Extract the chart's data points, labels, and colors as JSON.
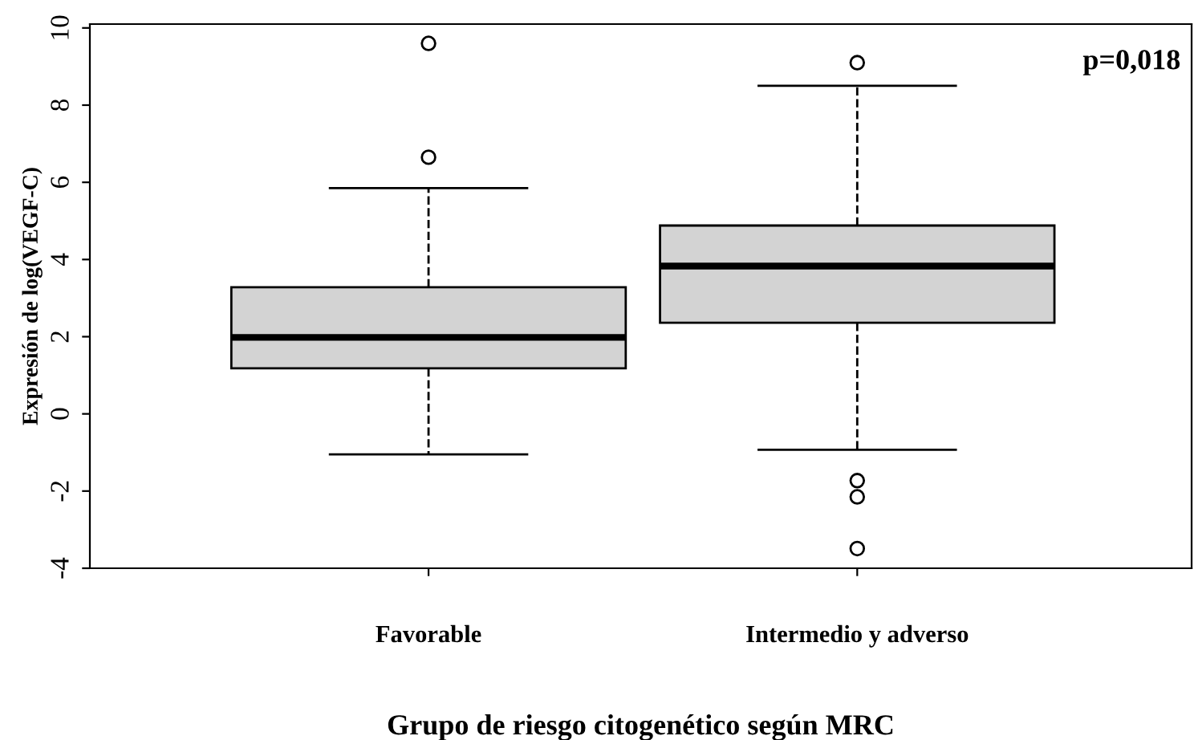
{
  "chart_data": {
    "type": "box",
    "xlabel": "Grupo de riesgo citogenético según MRC",
    "ylabel": "Expresión de log(VEGF-C)",
    "categories": [
      "Favorable",
      "Intermedio y adverso"
    ],
    "boxes": [
      {
        "low": -1.05,
        "q1": 1.18,
        "median": 1.98,
        "q3": 3.28,
        "high": 5.85,
        "outliers": [
          6.65,
          9.6
        ]
      },
      {
        "low": -0.93,
        "q1": 2.36,
        "median": 3.83,
        "q3": 4.88,
        "high": 8.5,
        "outliers": [
          9.1,
          -1.73,
          -2.15,
          -3.49
        ]
      }
    ],
    "color": "#d3d3d3",
    "ylim": [
      -4.0,
      10.1
    ],
    "yticks": [
      -4,
      -2,
      0,
      2,
      4,
      6,
      8,
      10
    ],
    "annotations": [
      "p=0,018"
    ],
    "grid": false,
    "legend": false
  }
}
